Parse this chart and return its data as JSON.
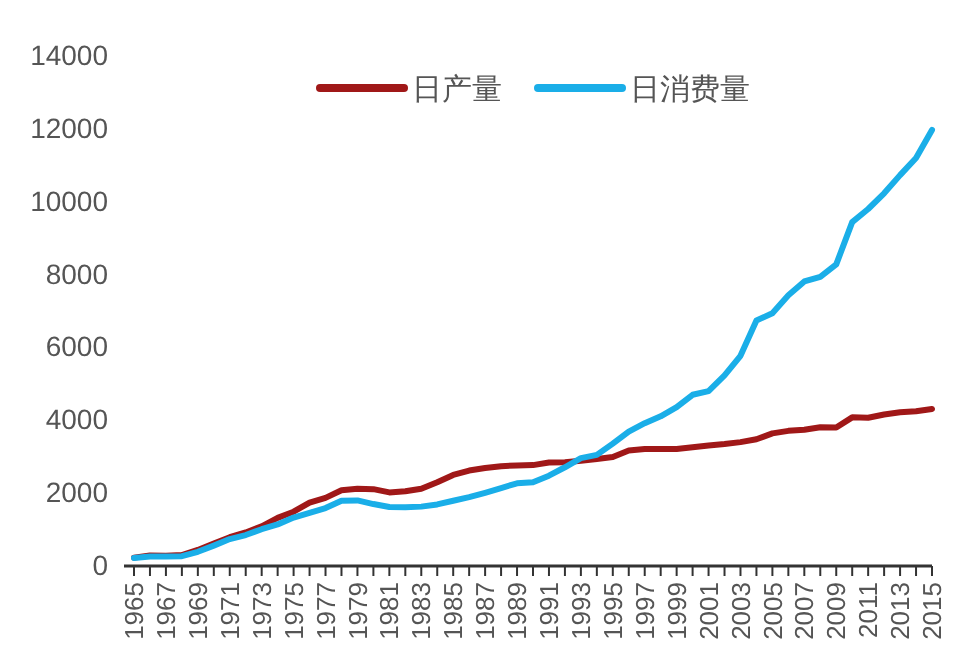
{
  "chart_data": {
    "type": "line",
    "categories": [
      "1965",
      null,
      "1967",
      null,
      "1969",
      null,
      "1971",
      null,
      "1973",
      null,
      "1975",
      null,
      "1977",
      null,
      "1979",
      null,
      "1981",
      null,
      "1983",
      null,
      "1985",
      null,
      "1987",
      null,
      "1989",
      null,
      "1991",
      null,
      "1993",
      null,
      "1995",
      null,
      "1997",
      null,
      "1999",
      null,
      "2001",
      null,
      "2003",
      null,
      "2005",
      null,
      "2007",
      null,
      "2009",
      null,
      "2011",
      null,
      "2013",
      null,
      "2015"
    ],
    "series": [
      {
        "name": "日产量",
        "color": "#a01818",
        "values": [
          230,
          290,
          280,
          300,
          440,
          620,
          790,
          920,
          1090,
          1320,
          1490,
          1740,
          1870,
          2080,
          2120,
          2110,
          2020,
          2050,
          2120,
          2300,
          2500,
          2620,
          2690,
          2740,
          2760,
          2770,
          2840,
          2850,
          2890,
          2940,
          2990,
          3170,
          3210,
          3210,
          3210,
          3260,
          3310,
          3350,
          3400,
          3480,
          3640,
          3710,
          3740,
          3810,
          3800,
          4080,
          4070,
          4160,
          4220,
          4250,
          4310
        ]
      },
      {
        "name": "日消费量",
        "color": "#1aaee8",
        "values": [
          220,
          260,
          260,
          270,
          390,
          560,
          740,
          850,
          1010,
          1140,
          1330,
          1460,
          1590,
          1790,
          1800,
          1700,
          1620,
          1610,
          1630,
          1690,
          1790,
          1890,
          2010,
          2140,
          2270,
          2300,
          2480,
          2710,
          2960,
          3050,
          3360,
          3690,
          3920,
          4110,
          4360,
          4700,
          4800,
          5230,
          5770,
          6740,
          6940,
          7430,
          7810,
          7940,
          8280,
          9440,
          9800,
          10230,
          10730,
          11200,
          11970
        ]
      }
    ],
    "ylim": [
      0,
      14000
    ],
    "yticks": [
      0,
      2000,
      4000,
      6000,
      8000,
      10000,
      12000,
      14000
    ],
    "grid": false,
    "legend": "top",
    "line_style": "solid",
    "marker": "none"
  }
}
